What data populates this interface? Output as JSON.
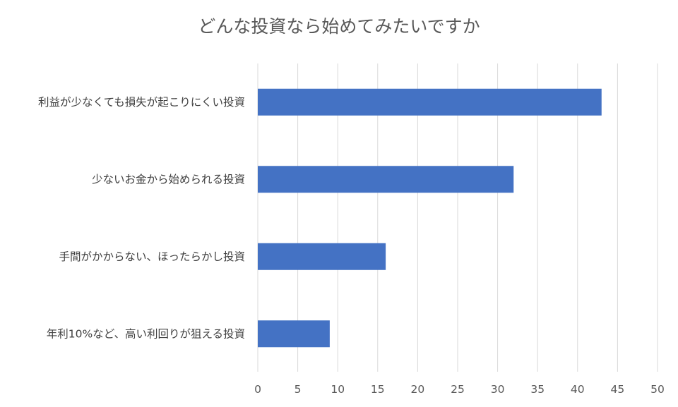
{
  "chart_data": {
    "type": "bar",
    "orientation": "horizontal",
    "title": "どんな投資なら始めてみたいですか",
    "categories": [
      "利益が少なくても損失が起こりにくい投資",
      "少ないお金から始められる投資",
      "手間がかからない、ほったらかし投資",
      "年利10%など、高い利回りが狙える投資"
    ],
    "values": [
      43,
      32,
      16,
      9
    ],
    "xlim": [
      0,
      50
    ],
    "xticks": [
      "0",
      "5",
      "10",
      "15",
      "20",
      "25",
      "30",
      "35",
      "40",
      "45",
      "50"
    ],
    "grid": true,
    "legend": "none",
    "colors": {
      "bar": "#4472C4",
      "grid": "#D9D9D9",
      "title": "#595959",
      "label": "#404040"
    }
  }
}
